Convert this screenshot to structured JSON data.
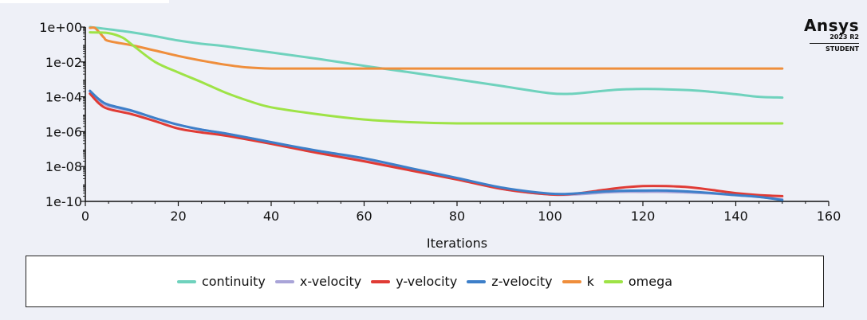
{
  "branding": {
    "name": "Ansys",
    "version": "2023 R2",
    "edition": "STUDENT"
  },
  "chart_data": {
    "type": "line",
    "title": "",
    "xlabel": "Iterations",
    "ylabel": "",
    "xlim": [
      0,
      160
    ],
    "ylim": [
      1e-10,
      1
    ],
    "yscale": "log",
    "x_ticks": [
      0,
      20,
      40,
      60,
      80,
      100,
      120,
      140,
      160
    ],
    "x_tick_labels": [
      "0",
      "20",
      "40",
      "60",
      "80",
      "100",
      "120",
      "140",
      "160"
    ],
    "y_ticks": [
      1,
      0.01,
      0.0001,
      1e-06,
      1e-08,
      1e-10
    ],
    "y_tick_labels": [
      "1e+00",
      "1e-02",
      "1e-04",
      "1e-06",
      "1e-08",
      "1e-10"
    ],
    "grid": false,
    "legend_position": "bottom",
    "series": [
      {
        "name": "continuity",
        "color": "#6fd2bd",
        "x": [
          1,
          5,
          10,
          15,
          20,
          25,
          30,
          40,
          50,
          60,
          70,
          80,
          90,
          100,
          105,
          110,
          115,
          120,
          125,
          130,
          135,
          140,
          145,
          150
        ],
        "y": [
          1.0,
          0.75,
          0.5,
          0.3,
          0.17,
          0.11,
          0.08,
          0.035,
          0.015,
          0.006,
          0.0025,
          0.001,
          0.0004,
          0.00016,
          0.00015,
          0.0002,
          0.00026,
          0.00028,
          0.00027,
          0.00024,
          0.00019,
          0.00014,
          0.0001,
          9e-05
        ]
      },
      {
        "name": "x-velocity",
        "color": "#a9a4d8",
        "x": [
          1,
          3,
          5,
          10,
          15,
          20,
          25,
          30,
          40,
          50,
          60,
          70,
          80,
          90,
          100,
          105,
          110,
          115,
          120,
          125,
          130,
          135,
          140,
          145,
          150
        ],
        "y": [
          0.0002,
          6e-05,
          3e-05,
          1.5e-05,
          6e-06,
          2.5e-06,
          1.3e-06,
          8e-07,
          2.5e-07,
          7e-08,
          2.5e-08,
          7e-09,
          2e-09,
          5e-10,
          2.5e-10,
          2.5e-10,
          3e-10,
          3.5e-10,
          3.5e-10,
          3.5e-10,
          3.2e-10,
          2.8e-10,
          2.3e-10,
          1.8e-10,
          1.3e-10
        ]
      },
      {
        "name": "y-velocity",
        "color": "#e03b35",
        "x": [
          1,
          3,
          5,
          10,
          15,
          20,
          25,
          30,
          40,
          50,
          60,
          70,
          80,
          90,
          100,
          105,
          110,
          115,
          120,
          125,
          130,
          135,
          140,
          145,
          150
        ],
        "y": [
          0.00015,
          4e-05,
          2e-05,
          1e-05,
          4e-06,
          1.5e-06,
          9e-07,
          6e-07,
          2e-07,
          6e-08,
          2e-08,
          6e-09,
          1.8e-09,
          5e-10,
          2.5e-10,
          2.7e-10,
          4e-10,
          6e-10,
          7.5e-10,
          7.5e-10,
          6.5e-10,
          4.5e-10,
          3e-10,
          2.3e-10,
          2e-10
        ]
      },
      {
        "name": "z-velocity",
        "color": "#3d7fc9",
        "x": [
          1,
          3,
          5,
          10,
          15,
          20,
          25,
          30,
          40,
          50,
          60,
          70,
          80,
          90,
          100,
          105,
          110,
          115,
          120,
          125,
          130,
          135,
          140,
          145,
          150
        ],
        "y": [
          0.00022,
          7e-05,
          3.5e-05,
          1.6e-05,
          6e-06,
          2.5e-06,
          1.3e-06,
          8e-07,
          2.5e-07,
          8e-08,
          3e-08,
          8e-09,
          2.2e-09,
          6e-10,
          2.8e-10,
          2.8e-10,
          3.5e-10,
          4e-10,
          4.2e-10,
          4.2e-10,
          3.7e-10,
          3e-10,
          2.3e-10,
          1.8e-10,
          1.2e-10
        ]
      },
      {
        "name": "k",
        "color": "#ef8e3c",
        "x": [
          1,
          2,
          3,
          4,
          5,
          10,
          15,
          20,
          25,
          30,
          35,
          40,
          50,
          60,
          80,
          100,
          120,
          140,
          150
        ],
        "y": [
          0.9,
          0.9,
          0.5,
          0.25,
          0.16,
          0.09,
          0.045,
          0.022,
          0.012,
          0.007,
          0.0048,
          0.0042,
          0.0042,
          0.0042,
          0.0042,
          0.0042,
          0.0042,
          0.0042,
          0.0042
        ]
      },
      {
        "name": "omega",
        "color": "#9ee346",
        "x": [
          1,
          5,
          8,
          10,
          15,
          20,
          25,
          30,
          35,
          40,
          50,
          60,
          70,
          80,
          100,
          120,
          140,
          150
        ],
        "y": [
          0.5,
          0.45,
          0.25,
          0.1,
          0.01,
          0.0025,
          0.0007,
          0.00018,
          6e-05,
          2.5e-05,
          1e-05,
          5e-06,
          3.5e-06,
          3e-06,
          3e-06,
          3e-06,
          3e-06,
          3e-06
        ]
      }
    ]
  }
}
